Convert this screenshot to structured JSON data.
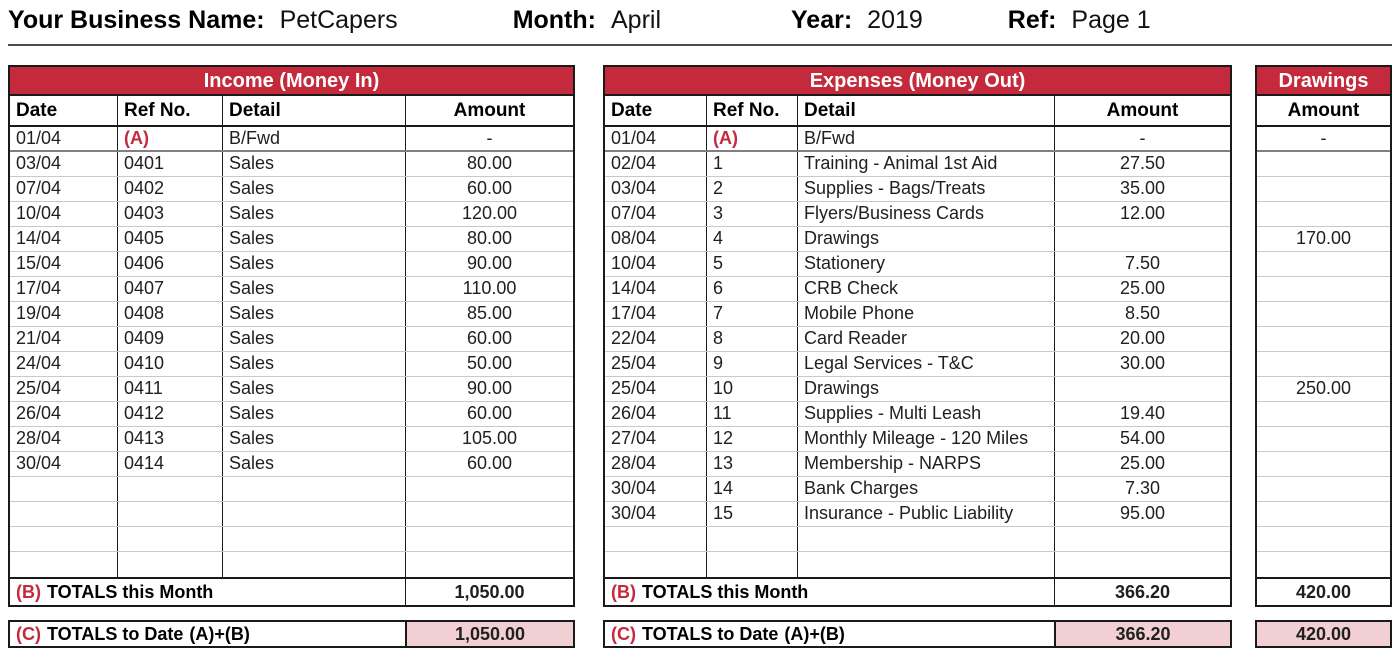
{
  "header": {
    "business_label": "Your Business Name:",
    "business_value": "PetCapers",
    "month_label": "Month:",
    "month_value": "April",
    "year_label": "Year:",
    "year_value": "2019",
    "ref_label": "Ref:",
    "ref_value": "Page 1"
  },
  "colors": {
    "banner_red": "#C5293C",
    "totals_pink": "#F2CFD2",
    "border_black": "#1a1a1a",
    "row_line_gray": "#C9C9C9"
  },
  "income": {
    "title": "Income (Money In)",
    "columns": [
      "Date",
      "Ref No.",
      "Detail",
      "Amount"
    ],
    "rows": [
      [
        "01/04",
        "(A)",
        "B/Fwd",
        "-"
      ],
      [
        "03/04",
        "0401",
        "Sales",
        "80.00"
      ],
      [
        "07/04",
        "0402",
        "Sales",
        "60.00"
      ],
      [
        "10/04",
        "0403",
        "Sales",
        "120.00"
      ],
      [
        "14/04",
        "0405",
        "Sales",
        "80.00"
      ],
      [
        "15/04",
        "0406",
        "Sales",
        "90.00"
      ],
      [
        "17/04",
        "0407",
        "Sales",
        "110.00"
      ],
      [
        "19/04",
        "0408",
        "Sales",
        "85.00"
      ],
      [
        "21/04",
        "0409",
        "Sales",
        "60.00"
      ],
      [
        "24/04",
        "0410",
        "Sales",
        "50.00"
      ],
      [
        "25/04",
        "0411",
        "Sales",
        "90.00"
      ],
      [
        "26/04",
        "0412",
        "Sales",
        "60.00"
      ],
      [
        "28/04",
        "0413",
        "Sales",
        "105.00"
      ],
      [
        "30/04",
        "0414",
        "Sales",
        "60.00"
      ]
    ],
    "empty_rows": 4,
    "totals_month": {
      "prefix": "(B)",
      "label": "TOTALS this Month",
      "value": "1,050.00"
    },
    "totals_to_date": {
      "prefix": "(C)",
      "label": "TOTALS to Date",
      "suffix": "(A)+(B)",
      "value": "1,050.00"
    }
  },
  "expenses": {
    "title": "Expenses (Money Out)",
    "columns": [
      "Date",
      "Ref No.",
      "Detail",
      "Amount"
    ],
    "rows": [
      [
        "01/04",
        "(A)",
        "B/Fwd",
        "-"
      ],
      [
        "02/04",
        "1",
        "Training - Animal 1st Aid",
        "27.50"
      ],
      [
        "03/04",
        "2",
        "Supplies - Bags/Treats",
        "35.00"
      ],
      [
        "07/04",
        "3",
        "Flyers/Business Cards",
        "12.00"
      ],
      [
        "08/04",
        "4",
        "Drawings",
        ""
      ],
      [
        "10/04",
        "5",
        "Stationery",
        "7.50"
      ],
      [
        "14/04",
        "6",
        "CRB Check",
        "25.00"
      ],
      [
        "17/04",
        "7",
        "Mobile Phone",
        "8.50"
      ],
      [
        "22/04",
        "8",
        "Card Reader",
        "20.00"
      ],
      [
        "25/04",
        "9",
        "Legal Services - T&C",
        "30.00"
      ],
      [
        "25/04",
        "10",
        "Drawings",
        ""
      ],
      [
        "26/04",
        "11",
        "Supplies - Multi Leash",
        "19.40"
      ],
      [
        "27/04",
        "12",
        "Monthly Mileage - 120 Miles",
        "54.00"
      ],
      [
        "28/04",
        "13",
        "Membership - NARPS",
        "25.00"
      ],
      [
        "30/04",
        "14",
        "Bank Charges",
        "7.30"
      ],
      [
        "30/04",
        "15",
        "Insurance - Public Liability",
        "95.00"
      ]
    ],
    "empty_rows": 2,
    "totals_month": {
      "prefix": "(B)",
      "label": "TOTALS this Month",
      "value": "366.20"
    },
    "totals_to_date": {
      "prefix": "(C)",
      "label": "TOTALS to Date",
      "suffix": "(A)+(B)",
      "value": "366.20"
    }
  },
  "drawings": {
    "title": "Drawings",
    "columns": [
      "Amount"
    ],
    "rows": [
      "-",
      "",
      "",
      "",
      "170.00",
      "",
      "",
      "",
      "",
      "",
      "250.00",
      "",
      "",
      "",
      "",
      "",
      "",
      ""
    ],
    "totals_month": {
      "value": "420.00"
    },
    "totals_to_date": {
      "value": "420.00"
    }
  }
}
